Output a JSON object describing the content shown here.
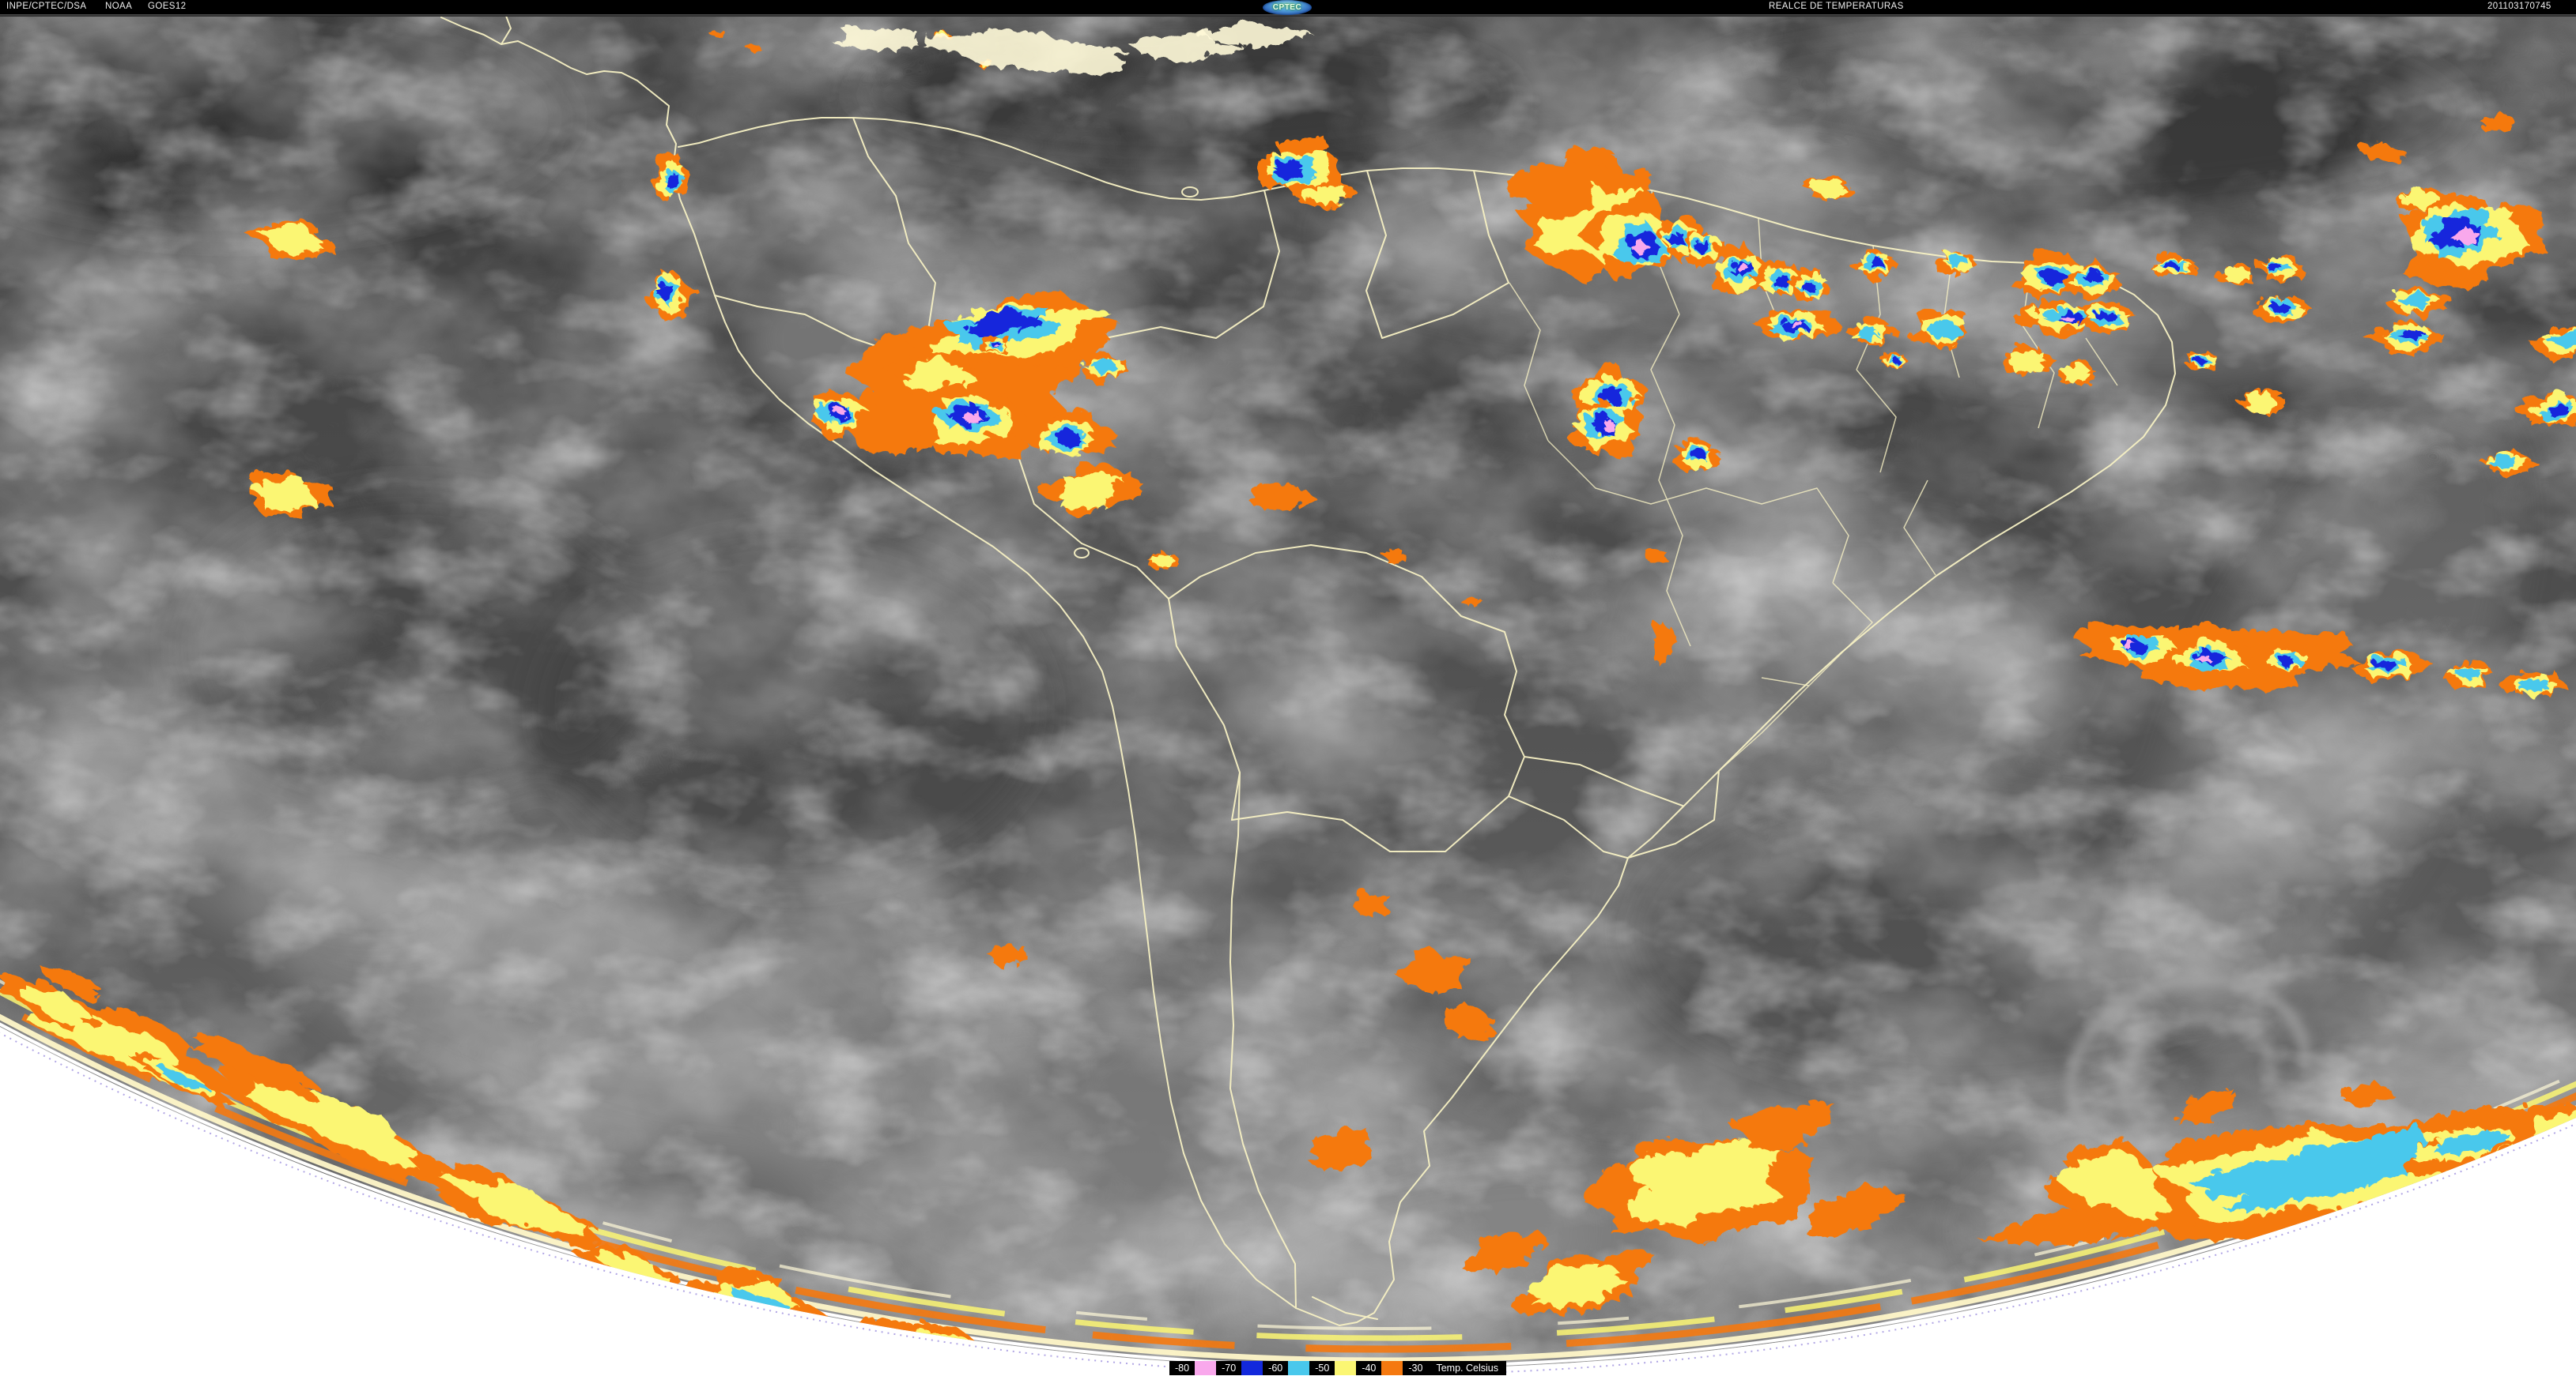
{
  "header": {
    "agency": "INPE/CPTEC/DSA",
    "network": "NOAA",
    "satellite": "GOES12",
    "logo_text": "CPTEC",
    "product_title": "REALCE DE TEMPERATURAS",
    "timestamp": "201103170745"
  },
  "legend": {
    "unit_label": "Temp. Celsius",
    "stops": [
      {
        "label": "-80",
        "swatch_color": "#F9A8EC"
      },
      {
        "label": "-70",
        "swatch_color": "#1228DC"
      },
      {
        "label": "-60",
        "swatch_color": "#49C8EC"
      },
      {
        "label": "-50",
        "swatch_color": "#FBF673"
      },
      {
        "label": "-40",
        "swatch_color": "#F5790F"
      },
      {
        "label": "-30",
        "swatch_color": ""
      }
    ]
  },
  "palette": {
    "orange": "#F5790F",
    "yellow": "#FBF673",
    "cyan": "#49C8EC",
    "blue": "#1228DC",
    "pink": "#F9A8EC",
    "cream": "#FFF9D8",
    "border": "#F7F1C4",
    "space": "#FFFFFF",
    "header_bg": "#000000"
  },
  "scene": {
    "cluster_fields": "[x, y, rx, ry, rot_deg, enhancement_depth 1=orange 2=+yellow 3=+cyan 4=+blue 5=+pink]",
    "storm_clusters": [
      [
        2005,
        270,
        95,
        65,
        -5,
        2
      ],
      [
        1965,
        235,
        55,
        35,
        0,
        1
      ],
      [
        2062,
        295,
        58,
        48,
        0,
        5
      ],
      [
        2125,
        297,
        30,
        24,
        0,
        4
      ],
      [
        2152,
        312,
        26,
        20,
        0,
        4
      ],
      [
        2198,
        340,
        36,
        30,
        0,
        5
      ],
      [
        2248,
        348,
        30,
        24,
        0,
        4
      ],
      [
        2284,
        357,
        24,
        19,
        0,
        4
      ],
      [
        2368,
        332,
        26,
        18,
        0,
        4
      ],
      [
        2470,
        330,
        22,
        15,
        0,
        3
      ],
      [
        2310,
        235,
        30,
        14,
        6,
        2
      ],
      [
        2010,
        196,
        30,
        12,
        0,
        1
      ],
      [
        2270,
        407,
        46,
        22,
        3,
        5
      ],
      [
        2365,
        416,
        28,
        17,
        0,
        3
      ],
      [
        2392,
        452,
        15,
        11,
        0,
        4
      ],
      [
        2032,
        496,
        42,
        34,
        0,
        4
      ],
      [
        2028,
        540,
        44,
        34,
        0,
        5
      ],
      [
        2142,
        573,
        28,
        20,
        0,
        4
      ],
      [
        2450,
        412,
        34,
        26,
        0,
        3
      ],
      [
        2595,
        345,
        50,
        28,
        0,
        4
      ],
      [
        2643,
        352,
        34,
        21,
        0,
        4
      ],
      [
        2600,
        400,
        52,
        20,
        3,
        5
      ],
      [
        2660,
        398,
        36,
        17,
        0,
        4
      ],
      [
        2745,
        333,
        28,
        14,
        0,
        4
      ],
      [
        2825,
        345,
        22,
        12,
        0,
        2
      ],
      [
        2882,
        337,
        28,
        16,
        0,
        4
      ],
      [
        2884,
        388,
        30,
        18,
        0,
        4
      ],
      [
        2780,
        453,
        20,
        12,
        0,
        4
      ],
      [
        2560,
        452,
        30,
        18,
        0,
        2
      ],
      [
        2625,
        470,
        24,
        14,
        0,
        2
      ],
      [
        3120,
        300,
        88,
        55,
        -10,
        5
      ],
      [
        3060,
        250,
        28,
        15,
        0,
        2
      ],
      [
        3055,
        380,
        35,
        18,
        0,
        3
      ],
      [
        3040,
        425,
        42,
        20,
        0,
        4
      ],
      [
        3240,
        430,
        38,
        20,
        0,
        3
      ],
      [
        3010,
        190,
        26,
        12,
        0,
        1
      ],
      [
        3155,
        152,
        22,
        10,
        0,
        1
      ],
      [
        3225,
        516,
        40,
        22,
        -5,
        4
      ],
      [
        3170,
        582,
        30,
        15,
        0,
        3
      ],
      [
        2860,
        505,
        28,
        15,
        0,
        2
      ],
      [
        2800,
        825,
        170,
        40,
        3,
        1
      ],
      [
        2700,
        820,
        50,
        24,
        4,
        5
      ],
      [
        2800,
        828,
        54,
        24,
        3,
        5
      ],
      [
        2890,
        832,
        32,
        17,
        0,
        4
      ],
      [
        3020,
        840,
        42,
        20,
        0,
        4
      ],
      [
        3120,
        852,
        30,
        16,
        0,
        3
      ],
      [
        3200,
        862,
        35,
        18,
        0,
        3
      ],
      [
        845,
        220,
        22,
        28,
        0,
        4
      ],
      [
        845,
        372,
        27,
        30,
        0,
        4
      ],
      [
        365,
        300,
        48,
        24,
        10,
        2
      ],
      [
        360,
        622,
        50,
        28,
        5,
        2
      ],
      [
        1210,
        492,
        155,
        82,
        -6,
        1
      ],
      [
        1282,
        421,
        130,
        42,
        -7,
        4
      ],
      [
        1180,
        470,
        55,
        26,
        0,
        2
      ],
      [
        1062,
        520,
        40,
        28,
        0,
        5
      ],
      [
        1222,
        527,
        66,
        40,
        -4,
        5
      ],
      [
        1352,
        546,
        52,
        26,
        0,
        4
      ],
      [
        1392,
        461,
        27,
        19,
        0,
        3
      ],
      [
        1255,
        432,
        18,
        12,
        0,
        5
      ],
      [
        1642,
        207,
        52,
        34,
        0,
        4
      ],
      [
        1668,
        242,
        38,
        16,
        0,
        2
      ],
      [
        1380,
        616,
        58,
        28,
        -8,
        2
      ],
      [
        1466,
        706,
        18,
        10,
        0,
        2
      ],
      [
        1616,
        626,
        34,
        18,
        0,
        1
      ],
      [
        1760,
        700,
        14,
        8,
        0,
        1
      ],
      [
        1860,
        760,
        12,
        7,
        0,
        1
      ],
      [
        2090,
        700,
        13,
        8,
        0,
        1
      ],
      [
        2100,
        810,
        14,
        26,
        0,
        1
      ],
      [
        1810,
        1226,
        40,
        28,
        0,
        1
      ],
      [
        1856,
        1292,
        30,
        22,
        0,
        1
      ],
      [
        1732,
        1142,
        22,
        14,
        0,
        1
      ],
      [
        1270,
        1206,
        24,
        14,
        0,
        1
      ],
      [
        1692,
        1452,
        40,
        24,
        -8,
        1
      ],
      [
        2150,
        1500,
        135,
        65,
        -14,
        2
      ],
      [
        2000,
        1622,
        82,
        34,
        -18,
        2
      ],
      [
        1900,
        1582,
        50,
        22,
        -18,
        1
      ],
      [
        2252,
        1422,
        60,
        28,
        -10,
        1
      ],
      [
        2340,
        1530,
        60,
        25,
        -12,
        1
      ],
      [
        948,
        1646,
        78,
        38,
        16,
        3
      ],
      [
        1168,
        1700,
        78,
        30,
        12,
        3
      ],
      [
        790,
        1600,
        60,
        20,
        20,
        2
      ],
      [
        150,
        1312,
        150,
        32,
        24,
        2
      ],
      [
        420,
        1422,
        150,
        34,
        23,
        2
      ],
      [
        225,
        1362,
        65,
        13,
        24,
        3
      ],
      [
        640,
        1522,
        115,
        28,
        21,
        2
      ],
      [
        60,
        1268,
        62,
        20,
        25,
        2
      ],
      [
        90,
        1242,
        40,
        12,
        24,
        1
      ],
      [
        320,
        1345,
        90,
        16,
        24,
        1
      ],
      [
        2900,
        1488,
        320,
        62,
        -11,
        3
      ],
      [
        2680,
        1502,
        92,
        48,
        18,
        2
      ],
      [
        2790,
        1398,
        42,
        15,
        -18,
        1
      ],
      [
        2990,
        1382,
        32,
        12,
        -8,
        1
      ],
      [
        3230,
        1432,
        62,
        36,
        -14,
        2
      ],
      [
        3120,
        1448,
        80,
        26,
        -12,
        3
      ],
      [
        1188,
        42,
        10,
        6,
        0,
        2
      ],
      [
        1242,
        76,
        9,
        6,
        0,
        2
      ],
      [
        906,
        40,
        9,
        5,
        0,
        1
      ],
      [
        950,
        57,
        8,
        5,
        0,
        1
      ]
    ],
    "cream_patches": [
      [
        1300,
        62,
        120,
        24,
        3
      ],
      [
        1492,
        56,
        62,
        17,
        0
      ],
      [
        1108,
        46,
        52,
        14,
        0
      ],
      [
        1580,
        40,
        60,
        14,
        0
      ]
    ]
  }
}
